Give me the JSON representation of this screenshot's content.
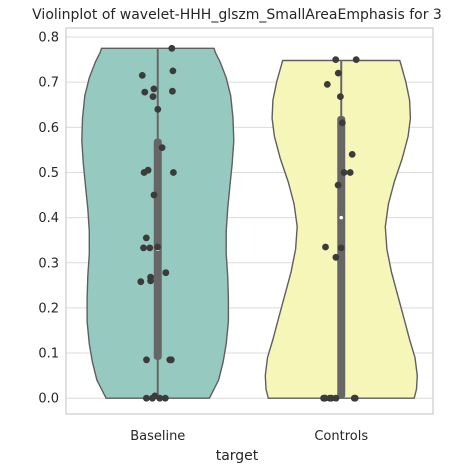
{
  "chart_data": {
    "type": "violin",
    "title": "Violinplot of wavelet-HHH_glszm_SmallAreaEmphasis for 3",
    "xlabel": "target",
    "ylabel": "",
    "ylim": [
      -0.035,
      0.82
    ],
    "yticks": [
      0.0,
      0.1,
      0.2,
      0.3,
      0.4,
      0.5,
      0.6,
      0.7,
      0.8
    ],
    "ytick_labels": [
      "0.0",
      "0.1",
      "0.2",
      "0.3",
      "0.4",
      "0.5",
      "0.6",
      "0.7",
      "0.8"
    ],
    "grid": true,
    "categories": [
      "Baseline",
      "Controls"
    ],
    "series": [
      {
        "name": "Baseline",
        "color": "#96c9bf",
        "range": [
          0.0,
          0.775
        ],
        "median": 0.33,
        "q1": 0.085,
        "q3": 0.575,
        "density": [
          [
            0.0,
            0.68
          ],
          [
            0.04,
            0.8
          ],
          [
            0.08,
            0.86
          ],
          [
            0.12,
            0.9
          ],
          [
            0.17,
            0.93
          ],
          [
            0.22,
            0.93
          ],
          [
            0.27,
            0.92
          ],
          [
            0.32,
            0.9
          ],
          [
            0.37,
            0.9
          ],
          [
            0.42,
            0.92
          ],
          [
            0.47,
            0.95
          ],
          [
            0.52,
            0.98
          ],
          [
            0.57,
            1.0
          ],
          [
            0.62,
            0.99
          ],
          [
            0.67,
            0.96
          ],
          [
            0.71,
            0.9
          ],
          [
            0.745,
            0.82
          ],
          [
            0.765,
            0.76
          ],
          [
            0.775,
            0.74
          ]
        ],
        "points": [
          0.775,
          0.725,
          0.715,
          0.685,
          0.68,
          0.678,
          0.668,
          0.64,
          0.555,
          0.505,
          0.5,
          0.5,
          0.45,
          0.355,
          0.335,
          0.333,
          0.333,
          0.278,
          0.268,
          0.26,
          0.258,
          0.085,
          0.085,
          0.085,
          0.005,
          0.0,
          0.0,
          0.0,
          0.0
        ]
      },
      {
        "name": "Controls",
        "color": "#f6f6b8",
        "range": [
          0.0,
          0.748
        ],
        "median": 0.4,
        "q1": 0.0,
        "q3": 0.625,
        "density": [
          [
            0.0,
            0.96
          ],
          [
            0.02,
            0.99
          ],
          [
            0.05,
            1.0
          ],
          [
            0.09,
            0.97
          ],
          [
            0.13,
            0.9
          ],
          [
            0.18,
            0.82
          ],
          [
            0.23,
            0.74
          ],
          [
            0.28,
            0.66
          ],
          [
            0.33,
            0.6
          ],
          [
            0.38,
            0.58
          ],
          [
            0.43,
            0.62
          ],
          [
            0.48,
            0.7
          ],
          [
            0.53,
            0.8
          ],
          [
            0.58,
            0.88
          ],
          [
            0.62,
            0.91
          ],
          [
            0.66,
            0.9
          ],
          [
            0.7,
            0.85
          ],
          [
            0.73,
            0.8
          ],
          [
            0.748,
            0.77
          ]
        ],
        "points": [
          0.75,
          0.75,
          0.72,
          0.695,
          0.668,
          0.61,
          0.54,
          0.5,
          0.5,
          0.472,
          0.335,
          0.333,
          0.312,
          0.0,
          0.0,
          0.0,
          0.0,
          0.0,
          0.0,
          0.0,
          0.0
        ]
      }
    ]
  }
}
